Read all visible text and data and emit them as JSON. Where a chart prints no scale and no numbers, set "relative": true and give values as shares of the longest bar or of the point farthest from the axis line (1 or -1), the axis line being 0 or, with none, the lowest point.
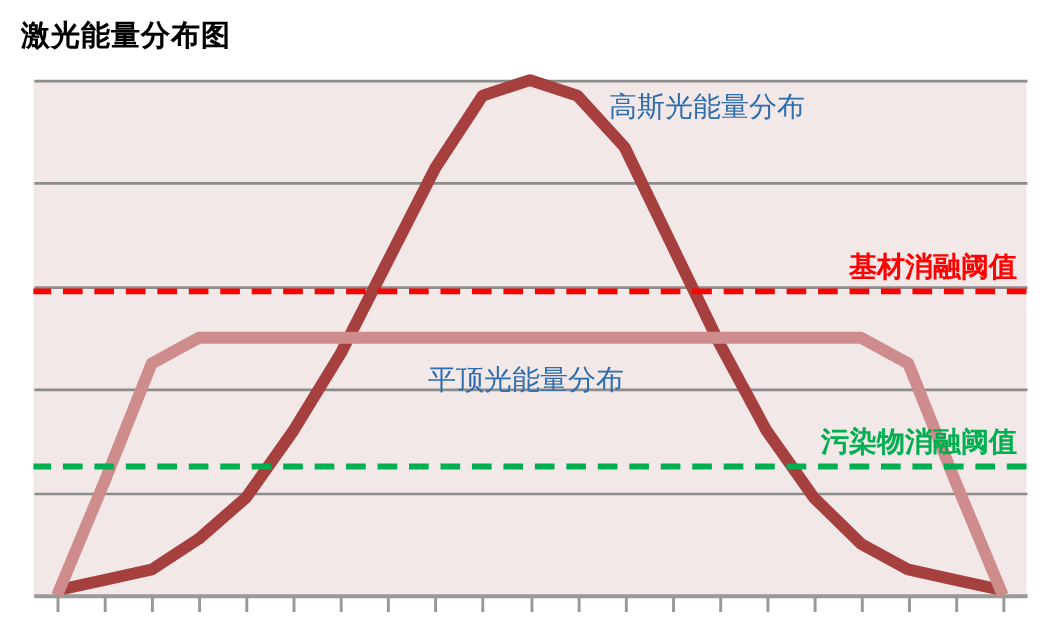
{
  "chart_data": {
    "type": "line",
    "title": "激光能量分布图",
    "relative": true,
    "grid": "y",
    "legend": false,
    "tick_labels": false,
    "line_style": "solid",
    "marker": "none",
    "categories": [
      null,
      null,
      null,
      null,
      null,
      null,
      null,
      null,
      null,
      null,
      null,
      null,
      null,
      null,
      null,
      null,
      null,
      null,
      null,
      null,
      null
    ],
    "series": [
      {
        "name": "高斯光能量分布",
        "color": "#a5403f",
        "values": [
          0.01,
          0.03,
          0.05,
          0.11,
          0.19,
          0.32,
          0.47,
          0.65,
          0.83,
          0.97,
          1,
          0.97,
          0.87,
          0.68,
          0.49,
          0.32,
          0.19,
          0.1,
          0.05,
          0.03,
          0.01
        ]
      },
      {
        "name": "平顶光能量分布",
        "color": "#cf8c8c",
        "values": [
          0,
          0.22,
          0.45,
          0.5,
          0.5,
          0.5,
          0.5,
          0.5,
          0.5,
          0.5,
          0.5,
          0.5,
          0.5,
          0.5,
          0.5,
          0.5,
          0.5,
          0.5,
          0.45,
          0.22,
          0
        ]
      }
    ],
    "ref_lines": [
      {
        "axis": "y",
        "value": 0.59,
        "label": "基材消融阈值",
        "color": "#ff0000",
        "line_style": "dashed"
      },
      {
        "axis": "y",
        "value": 0.25,
        "label": "污染物消融阈值",
        "color": "#00b050",
        "line_style": "dashed"
      }
    ]
  }
}
